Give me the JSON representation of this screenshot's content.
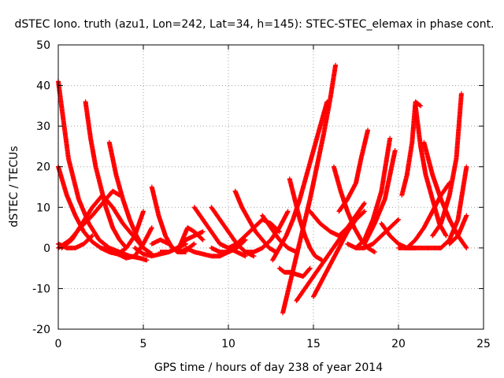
{
  "chart_data": {
    "type": "scatter",
    "title": "dSTEC Iono. truth (azu1, Lon=242, Lat=34, h=145): STEC-STEC_elemax in phase cont.",
    "xlabel": "GPS time / hours of day 238 of year 2014",
    "ylabel": "dSTEC  / TECUs",
    "xlim": [
      0,
      25
    ],
    "ylim": [
      -20,
      50
    ],
    "xticks": [
      0,
      5,
      10,
      15,
      20,
      25
    ],
    "yticks": [
      -20,
      -10,
      0,
      10,
      20,
      30,
      40,
      50
    ],
    "grid": true,
    "legend": "none",
    "marker": "plus",
    "color": "#ff0000",
    "series": [
      {
        "x": [
          0.0,
          0.6,
          1.2,
          1.8,
          2.4,
          3.0,
          3.6,
          4.2,
          4.8,
          5.2
        ],
        "y": [
          41,
          22,
          12,
          6,
          2,
          0,
          -1,
          -2,
          -2.5,
          -3
        ]
      },
      {
        "x": [
          0.0,
          0.5,
          1.0,
          1.5,
          2.0,
          2.5,
          3.0,
          3.5
        ],
        "y": [
          20,
          13,
          8,
          4,
          1.5,
          0,
          -0.5,
          -1
        ]
      },
      {
        "x": [
          0.0,
          0.7,
          1.3,
          2.0,
          2.6,
          3.2,
          3.6
        ],
        "y": [
          0,
          2,
          5,
          8,
          11,
          14,
          13
        ]
      },
      {
        "x": [
          0.0,
          0.5,
          1.0,
          1.5,
          2.0
        ],
        "y": [
          1,
          0,
          0,
          1,
          3
        ]
      },
      {
        "x": [
          0.2,
          0.8,
          1.4,
          2.0,
          2.6,
          3.2,
          3.8,
          4.4,
          5.0
        ],
        "y": [
          0,
          2,
          6,
          10,
          13,
          10,
          6,
          3,
          0
        ]
      },
      {
        "x": [
          1.6,
          1.9,
          2.2,
          2.5,
          2.8,
          3.2,
          3.6,
          4.0
        ],
        "y": [
          36,
          27,
          20,
          15,
          10,
          5,
          2,
          0
        ]
      },
      {
        "x": [
          3.0,
          3.4,
          3.8,
          4.2,
          4.6,
          5.0,
          5.5
        ],
        "y": [
          26,
          18,
          12,
          7,
          3,
          0,
          -1.5
        ]
      },
      {
        "x": [
          2.5,
          3.0,
          3.5,
          4.0,
          4.5,
          5.0
        ],
        "y": [
          0,
          -1,
          -1.5,
          0,
          3,
          9
        ]
      },
      {
        "x": [
          3.0,
          3.5,
          4.0,
          4.5,
          5.0,
          5.5
        ],
        "y": [
          -1,
          -1.5,
          -2.5,
          -2,
          1,
          5
        ]
      },
      {
        "x": [
          5.5,
          5.9,
          6.3,
          6.7,
          7.1,
          7.5
        ],
        "y": [
          15,
          8,
          3,
          0,
          -1,
          -1
        ]
      },
      {
        "x": [
          4.5,
          5.0,
          5.5,
          6.0,
          6.5,
          7.0,
          7.5
        ],
        "y": [
          0,
          -1.5,
          -2,
          -1.5,
          -1,
          0,
          1
        ]
      },
      {
        "x": [
          5.5,
          6.0,
          6.5,
          7.0,
          7.5,
          8.0
        ],
        "y": [
          1,
          2,
          1,
          -1,
          -0.5,
          1
        ]
      },
      {
        "x": [
          6.0,
          6.5,
          7.0,
          7.5,
          8.0,
          8.5
        ],
        "y": [
          -1,
          -1,
          0,
          2,
          3,
          4
        ]
      },
      {
        "x": [
          7.0,
          7.3,
          7.6,
          8.0,
          8.5
        ],
        "y": [
          -1,
          2,
          5,
          4,
          2
        ]
      },
      {
        "x": [
          8.0,
          8.5,
          9.0,
          9.5,
          10.0,
          10.5,
          11.0
        ],
        "y": [
          10,
          7,
          4,
          1,
          0,
          -1,
          -2
        ]
      },
      {
        "x": [
          9.0,
          9.5,
          10.0,
          10.5,
          11.0,
          11.5
        ],
        "y": [
          10,
          7,
          4,
          1,
          -1,
          -2
        ]
      },
      {
        "x": [
          7.5,
          8.0,
          8.5,
          9.0,
          9.5,
          10.0,
          10.5
        ],
        "y": [
          0,
          -1,
          -1.5,
          -2,
          -2,
          -1,
          0
        ]
      },
      {
        "x": [
          9.0,
          9.5,
          10.0,
          10.5,
          11.0
        ],
        "y": [
          0,
          -1,
          -1,
          0,
          2
        ]
      },
      {
        "x": [
          10.4,
          10.8,
          11.2,
          11.6,
          12.0,
          12.4,
          12.8
        ],
        "y": [
          14,
          10,
          7,
          4,
          2,
          0,
          -1
        ]
      },
      {
        "x": [
          10.0,
          10.5,
          11.0,
          11.5,
          12.0,
          12.5,
          13.0
        ],
        "y": [
          0,
          1,
          3,
          5,
          7,
          6,
          4
        ]
      },
      {
        "x": [
          12.0,
          12.5,
          13.0,
          13.5,
          14.0
        ],
        "y": [
          8,
          5,
          2,
          0,
          -1
        ]
      },
      {
        "x": [
          11.0,
          11.5,
          12.0,
          12.5,
          13.0,
          13.5
        ],
        "y": [
          -1,
          -1,
          0,
          2,
          5,
          9
        ]
      },
      {
        "x": [
          13.0,
          13.3,
          13.6,
          14.0,
          14.4,
          14.8
        ],
        "y": [
          -5,
          -6,
          -6,
          -6.5,
          -7,
          -5
        ]
      },
      {
        "x": [
          12.6,
          13.0,
          13.4,
          13.8,
          14.2,
          14.6,
          15.0,
          15.4,
          15.8
        ],
        "y": [
          -3,
          0,
          3,
          7,
          12,
          18,
          24,
          30,
          36
        ]
      },
      {
        "x": [
          13.2,
          13.6,
          14.0,
          14.4,
          14.8,
          15.2,
          15.6,
          16.0,
          16.3
        ],
        "y": [
          -16,
          -9,
          -2,
          5,
          12,
          20,
          28,
          37,
          45
        ]
      },
      {
        "x": [
          13.6,
          13.9,
          14.2,
          14.5,
          14.8,
          15.1,
          15.5
        ],
        "y": [
          17,
          12,
          7,
          3,
          0,
          -2,
          -3
        ]
      },
      {
        "x": [
          14.0,
          14.5,
          15.0,
          15.5,
          16.0,
          16.5,
          17.0
        ],
        "y": [
          -13,
          -10,
          -7,
          -4,
          -1,
          2,
          5
        ]
      },
      {
        "x": [
          15.0,
          15.5,
          16.0,
          16.5,
          17.0,
          17.5,
          18.0
        ],
        "y": [
          -12,
          -8,
          -4,
          0,
          4,
          7,
          9
        ]
      },
      {
        "x": [
          14.8,
          15.4,
          16.0,
          16.5,
          17.0,
          17.5,
          18.0
        ],
        "y": [
          9,
          6,
          4,
          3,
          5,
          8,
          11
        ]
      },
      {
        "x": [
          16.2,
          16.6,
          17.0,
          17.4,
          17.8,
          18.2,
          18.6
        ],
        "y": [
          20,
          14,
          9,
          5,
          2,
          0,
          -1
        ]
      },
      {
        "x": [
          16.5,
          17.0,
          17.5,
          17.8,
          18.2
        ],
        "y": [
          9,
          12,
          16,
          22,
          29
        ]
      },
      {
        "x": [
          17.5,
          18.0,
          18.5,
          19.0,
          19.5
        ],
        "y": [
          0,
          2,
          7,
          14,
          27
        ]
      },
      {
        "x": [
          18.0,
          18.6,
          19.2,
          19.8
        ],
        "y": [
          1,
          6,
          12,
          24
        ]
      },
      {
        "x": [
          17.0,
          17.5,
          18.0,
          18.5,
          19.0,
          19.5,
          20.0
        ],
        "y": [
          1,
          0,
          0,
          1,
          3,
          5,
          7
        ]
      },
      {
        "x": [
          19.0,
          19.5,
          20.0,
          20.5,
          21.0
        ],
        "y": [
          6,
          3,
          1,
          0,
          0
        ]
      },
      {
        "x": [
          20.2,
          20.5,
          20.8,
          21.0,
          21.3
        ],
        "y": [
          13,
          18,
          26,
          36,
          35
        ]
      },
      {
        "x": [
          21.0,
          21.3,
          21.6,
          22.0,
          22.4,
          22.8
        ],
        "y": [
          35,
          25,
          18,
          12,
          6,
          3
        ]
      },
      {
        "x": [
          20.5,
          21.0,
          21.5,
          22.0,
          22.5,
          23.0
        ],
        "y": [
          0,
          2,
          5,
          9,
          13,
          16
        ]
      },
      {
        "x": [
          21.5,
          22.0,
          22.5,
          23.0,
          23.5,
          24.0
        ],
        "y": [
          26,
          18,
          12,
          7,
          3,
          0
        ]
      },
      {
        "x": [
          22.0,
          22.5,
          23.0,
          23.4,
          23.7
        ],
        "y": [
          3,
          6,
          13,
          22,
          38
        ]
      },
      {
        "x": [
          22.5,
          23.0,
          23.5,
          24.0
        ],
        "y": [
          0,
          2,
          7,
          20
        ]
      },
      {
        "x": [
          23.0,
          23.5,
          24.0
        ],
        "y": [
          1,
          3,
          8
        ]
      },
      {
        "x": [
          20.0,
          20.5,
          21.0,
          21.5,
          22.0,
          22.5
        ],
        "y": [
          0,
          0,
          0,
          0,
          0,
          0
        ]
      }
    ]
  }
}
